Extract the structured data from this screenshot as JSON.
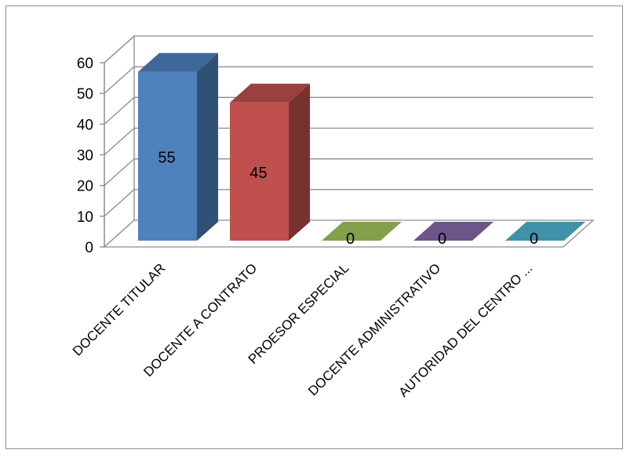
{
  "chart_data": {
    "type": "bar",
    "style": "3d-column",
    "title": "",
    "xlabel": "",
    "ylabel": "",
    "ylim": [
      0,
      60
    ],
    "yticks": [
      0,
      10,
      20,
      30,
      40,
      50,
      60
    ],
    "grid": true,
    "legend": "none",
    "categories": [
      "DOCENTE TITULAR",
      "DOCENTE A CONTRATO",
      "PROESOR ESPECIAL",
      "DOCENTE ADMINISTRATIVO",
      "AUTORIDAD DEL CENTRO ..."
    ],
    "values": [
      55,
      45,
      0,
      0,
      0
    ],
    "colors": [
      "#4f81bd",
      "#c0504d",
      "#9bbb59",
      "#8064a2",
      "#4bacc6"
    ]
  }
}
